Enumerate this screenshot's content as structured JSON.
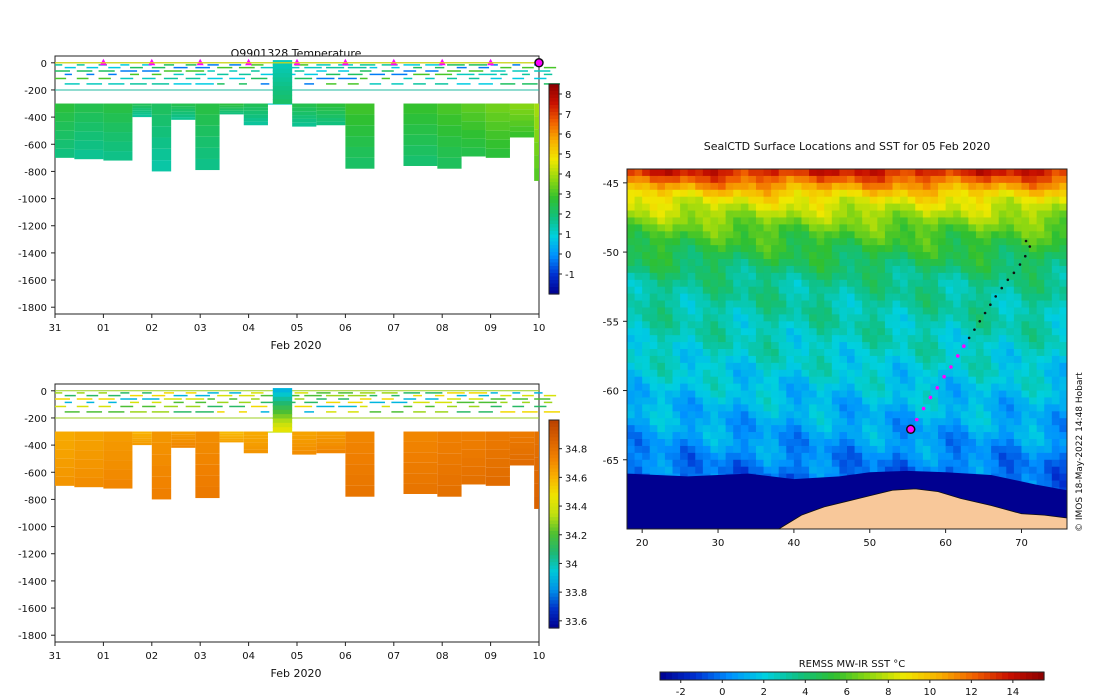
{
  "chart_data": [
    {
      "id": "temp",
      "type": "heatmap",
      "title": "Q9901328  Temperature",
      "xlabel": "Feb 2020",
      "ylabel": "",
      "x_ticks": [
        "31",
        "01",
        "02",
        "03",
        "04",
        "05",
        "06",
        "07",
        "08",
        "09",
        "10"
      ],
      "x_range_days": [
        0,
        10
      ],
      "ylim": [
        -1850,
        50
      ],
      "y_ticks": [
        0,
        -200,
        -400,
        -600,
        -800,
        -1000,
        -1200,
        -1400,
        -1600,
        -1800
      ],
      "colorbar": {
        "ticks": [
          "8",
          "7",
          "6",
          "5",
          "4",
          "3",
          "2",
          "1",
          "0",
          "-1"
        ],
        "min": -2,
        "max": 8.5
      },
      "surface_markers_days": [
        1,
        2,
        3,
        4,
        5,
        6,
        7,
        8,
        9
      ],
      "current_marker_day": 10,
      "profiles": [
        {
          "day": 0.0,
          "bottom": -700,
          "temp": 2.6
        },
        {
          "day": 0.4,
          "bottom": -710,
          "temp": 2.4
        },
        {
          "day": 1.0,
          "bottom": -720,
          "temp": 2.5
        },
        {
          "day": 1.6,
          "bottom": -400,
          "temp": 2.3
        },
        {
          "day": 2.0,
          "bottom": -800,
          "temp": 2.2
        },
        {
          "day": 2.4,
          "bottom": -420,
          "temp": 2.4
        },
        {
          "day": 2.9,
          "bottom": -790,
          "temp": 2.5
        },
        {
          "day": 3.4,
          "bottom": -380,
          "temp": 2.6
        },
        {
          "day": 3.9,
          "bottom": -460,
          "temp": 2.3
        },
        {
          "day": 4.4,
          "bottom": -300,
          "temp": 1.8
        },
        {
          "day": 4.9,
          "bottom": -470,
          "temp": 2.4
        },
        {
          "day": 5.4,
          "bottom": -460,
          "temp": 2.6
        },
        {
          "day": 6.0,
          "bottom": -780,
          "temp": 2.9
        },
        {
          "day": 6.6,
          "bottom": -300,
          "temp": null
        },
        {
          "day": 7.2,
          "bottom": -760,
          "temp": 2.8
        },
        {
          "day": 7.9,
          "bottom": -780,
          "temp": 3.0
        },
        {
          "day": 8.4,
          "bottom": -690,
          "temp": 3.2
        },
        {
          "day": 8.9,
          "bottom": -700,
          "temp": 3.4
        },
        {
          "day": 9.4,
          "bottom": -550,
          "temp": 3.6
        },
        {
          "day": 9.9,
          "bottom": -870,
          "temp": 3.9
        }
      ]
    },
    {
      "id": "sal",
      "type": "heatmap",
      "title": "",
      "xlabel": "Feb 2020",
      "ylabel": "",
      "x_ticks": [
        "31",
        "01",
        "02",
        "03",
        "04",
        "05",
        "06",
        "07",
        "08",
        "09",
        "10"
      ],
      "x_range_days": [
        0,
        10
      ],
      "ylim": [
        -1850,
        50
      ],
      "y_ticks": [
        0,
        -200,
        -400,
        -600,
        -800,
        -1000,
        -1200,
        -1400,
        -1600,
        -1800
      ],
      "colorbar": {
        "ticks": [
          "34.8",
          "34.6",
          "34.4",
          "34.2",
          "34",
          "33.8",
          "33.6"
        ],
        "min": 33.55,
        "max": 35.0
      },
      "profiles": [
        {
          "day": 0.0,
          "bottom": -700,
          "sal": 34.62
        },
        {
          "day": 0.4,
          "bottom": -710,
          "sal": 34.64
        },
        {
          "day": 1.0,
          "bottom": -720,
          "sal": 34.66
        },
        {
          "day": 1.6,
          "bottom": -400,
          "sal": 34.6
        },
        {
          "day": 2.0,
          "bottom": -800,
          "sal": 34.68
        },
        {
          "day": 2.4,
          "bottom": -420,
          "sal": 34.66
        },
        {
          "day": 2.9,
          "bottom": -790,
          "sal": 34.7
        },
        {
          "day": 3.4,
          "bottom": -380,
          "sal": 34.58
        },
        {
          "day": 3.9,
          "bottom": -460,
          "sal": 34.62
        },
        {
          "day": 4.4,
          "bottom": -300,
          "sal": 34.3
        },
        {
          "day": 4.9,
          "bottom": -470,
          "sal": 34.64
        },
        {
          "day": 5.4,
          "bottom": -460,
          "sal": 34.66
        },
        {
          "day": 6.0,
          "bottom": -780,
          "sal": 34.72
        },
        {
          "day": 6.6,
          "bottom": -300,
          "sal": null
        },
        {
          "day": 7.2,
          "bottom": -760,
          "sal": 34.72
        },
        {
          "day": 7.9,
          "bottom": -780,
          "sal": 34.74
        },
        {
          "day": 8.4,
          "bottom": -690,
          "sal": 34.74
        },
        {
          "day": 8.9,
          "bottom": -700,
          "sal": 34.76
        },
        {
          "day": 9.4,
          "bottom": -550,
          "sal": 34.76
        },
        {
          "day": 9.9,
          "bottom": -870,
          "sal": 34.8
        }
      ]
    },
    {
      "id": "map",
      "type": "heatmap",
      "title": "SealCTD Surface Locations and SST for 05 Feb 2020",
      "xlabel": "",
      "ylabel": "",
      "xlim": [
        18,
        76
      ],
      "ylim": [
        -70,
        -44
      ],
      "x_ticks": [
        20,
        30,
        40,
        50,
        60,
        70
      ],
      "y_ticks": [
        -45,
        -50,
        -55,
        -60,
        -65
      ],
      "y_tick_labels": [
        "-45",
        "-50",
        "-55",
        "-60",
        "-65"
      ],
      "colorbar": {
        "label": "REMSS MW-IR SST °C",
        "ticks": [
          "-2",
          "0",
          "2",
          "4",
          "6",
          "8",
          "10",
          "12",
          "14"
        ],
        "min": -3,
        "max": 15.5
      },
      "track_recent": [
        [
          55.4,
          -62.8
        ],
        [
          56.2,
          -62.1
        ],
        [
          57.1,
          -61.3
        ],
        [
          58.0,
          -60.5
        ],
        [
          58.9,
          -59.8
        ],
        [
          59.8,
          -59.0
        ],
        [
          60.7,
          -58.3
        ],
        [
          61.6,
          -57.5
        ],
        [
          62.4,
          -56.8
        ]
      ],
      "track_older": [
        [
          63.1,
          -56.2
        ],
        [
          63.8,
          -55.6
        ],
        [
          64.5,
          -55.0
        ],
        [
          65.2,
          -54.4
        ],
        [
          65.9,
          -53.8
        ],
        [
          66.6,
          -53.2
        ],
        [
          67.4,
          -52.6
        ],
        [
          68.2,
          -52.0
        ],
        [
          69.0,
          -51.5
        ],
        [
          69.8,
          -50.9
        ],
        [
          70.5,
          -50.3
        ],
        [
          71.1,
          -49.6
        ],
        [
          70.6,
          -49.2
        ]
      ],
      "current_position": [
        55.4,
        -62.8
      ]
    }
  ],
  "credit": "©  IMOS 18-May-2022 14:48 Hobart"
}
